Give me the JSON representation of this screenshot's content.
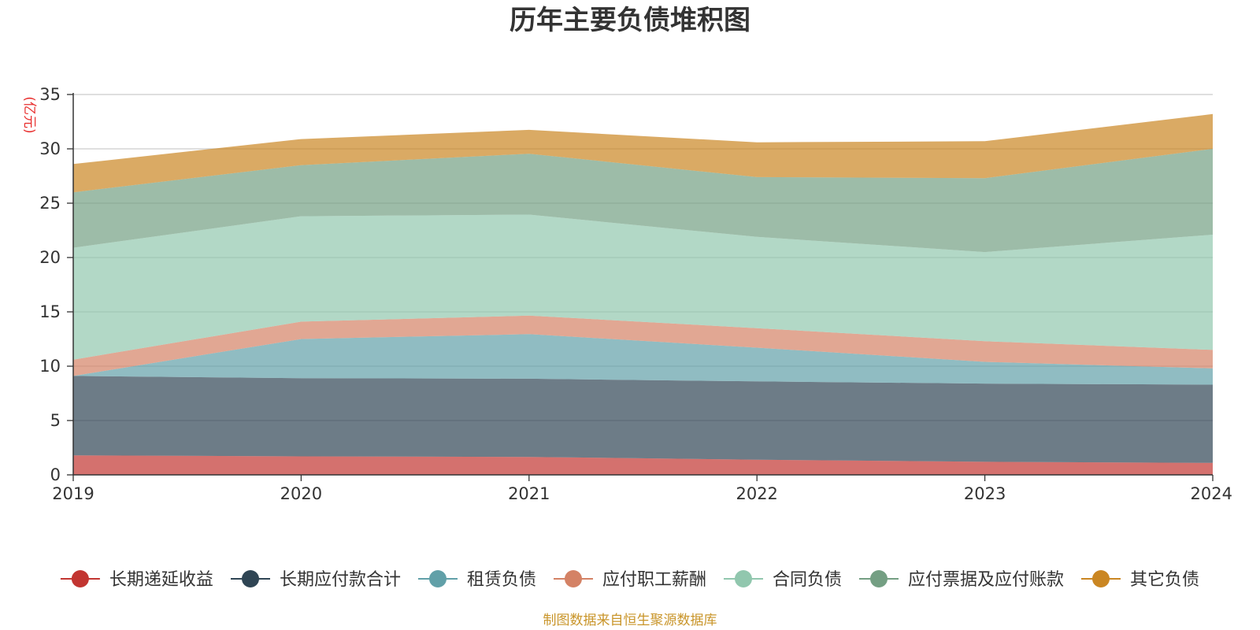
{
  "title": "历年主要负债堆积图",
  "unit_label": "(亿元)",
  "footer": "制图数据来自恒生聚源数据库",
  "chart_data": {
    "type": "area",
    "stacked": true,
    "categories": [
      "2019",
      "2020",
      "2021",
      "2022",
      "2023",
      "2024"
    ],
    "ylim": [
      0,
      35
    ],
    "yticks": [
      "0",
      "5",
      "10",
      "15",
      "20",
      "25",
      "30",
      "35"
    ],
    "grid": true,
    "legend_position": "bottom",
    "series": [
      {
        "name": "长期递延收益",
        "color": "#c23531",
        "values": [
          1.8,
          1.7,
          1.65,
          1.4,
          1.2,
          1.1
        ]
      },
      {
        "name": "长期应付款合计",
        "color": "#2f4554",
        "values": [
          7.3,
          7.2,
          7.2,
          7.2,
          7.2,
          7.2
        ]
      },
      {
        "name": "租赁负债",
        "color": "#61a0a8",
        "values": [
          0.0,
          3.6,
          4.1,
          3.1,
          2.0,
          1.5
        ]
      },
      {
        "name": "应付职工薪酬",
        "color": "#d48265",
        "values": [
          1.5,
          1.6,
          1.7,
          1.8,
          1.9,
          1.7
        ]
      },
      {
        "name": "合同负债",
        "color": "#91c7ae",
        "values": [
          10.3,
          9.7,
          9.3,
          8.4,
          8.2,
          10.6
        ]
      },
      {
        "name": "应付票据及应付账款",
        "color": "#749f83",
        "values": [
          5.1,
          4.7,
          5.6,
          5.5,
          6.8,
          7.9
        ]
      },
      {
        "name": "其它负债",
        "color": "#ca8622",
        "values": [
          2.6,
          2.4,
          2.2,
          3.2,
          3.4,
          3.2
        ]
      }
    ]
  }
}
